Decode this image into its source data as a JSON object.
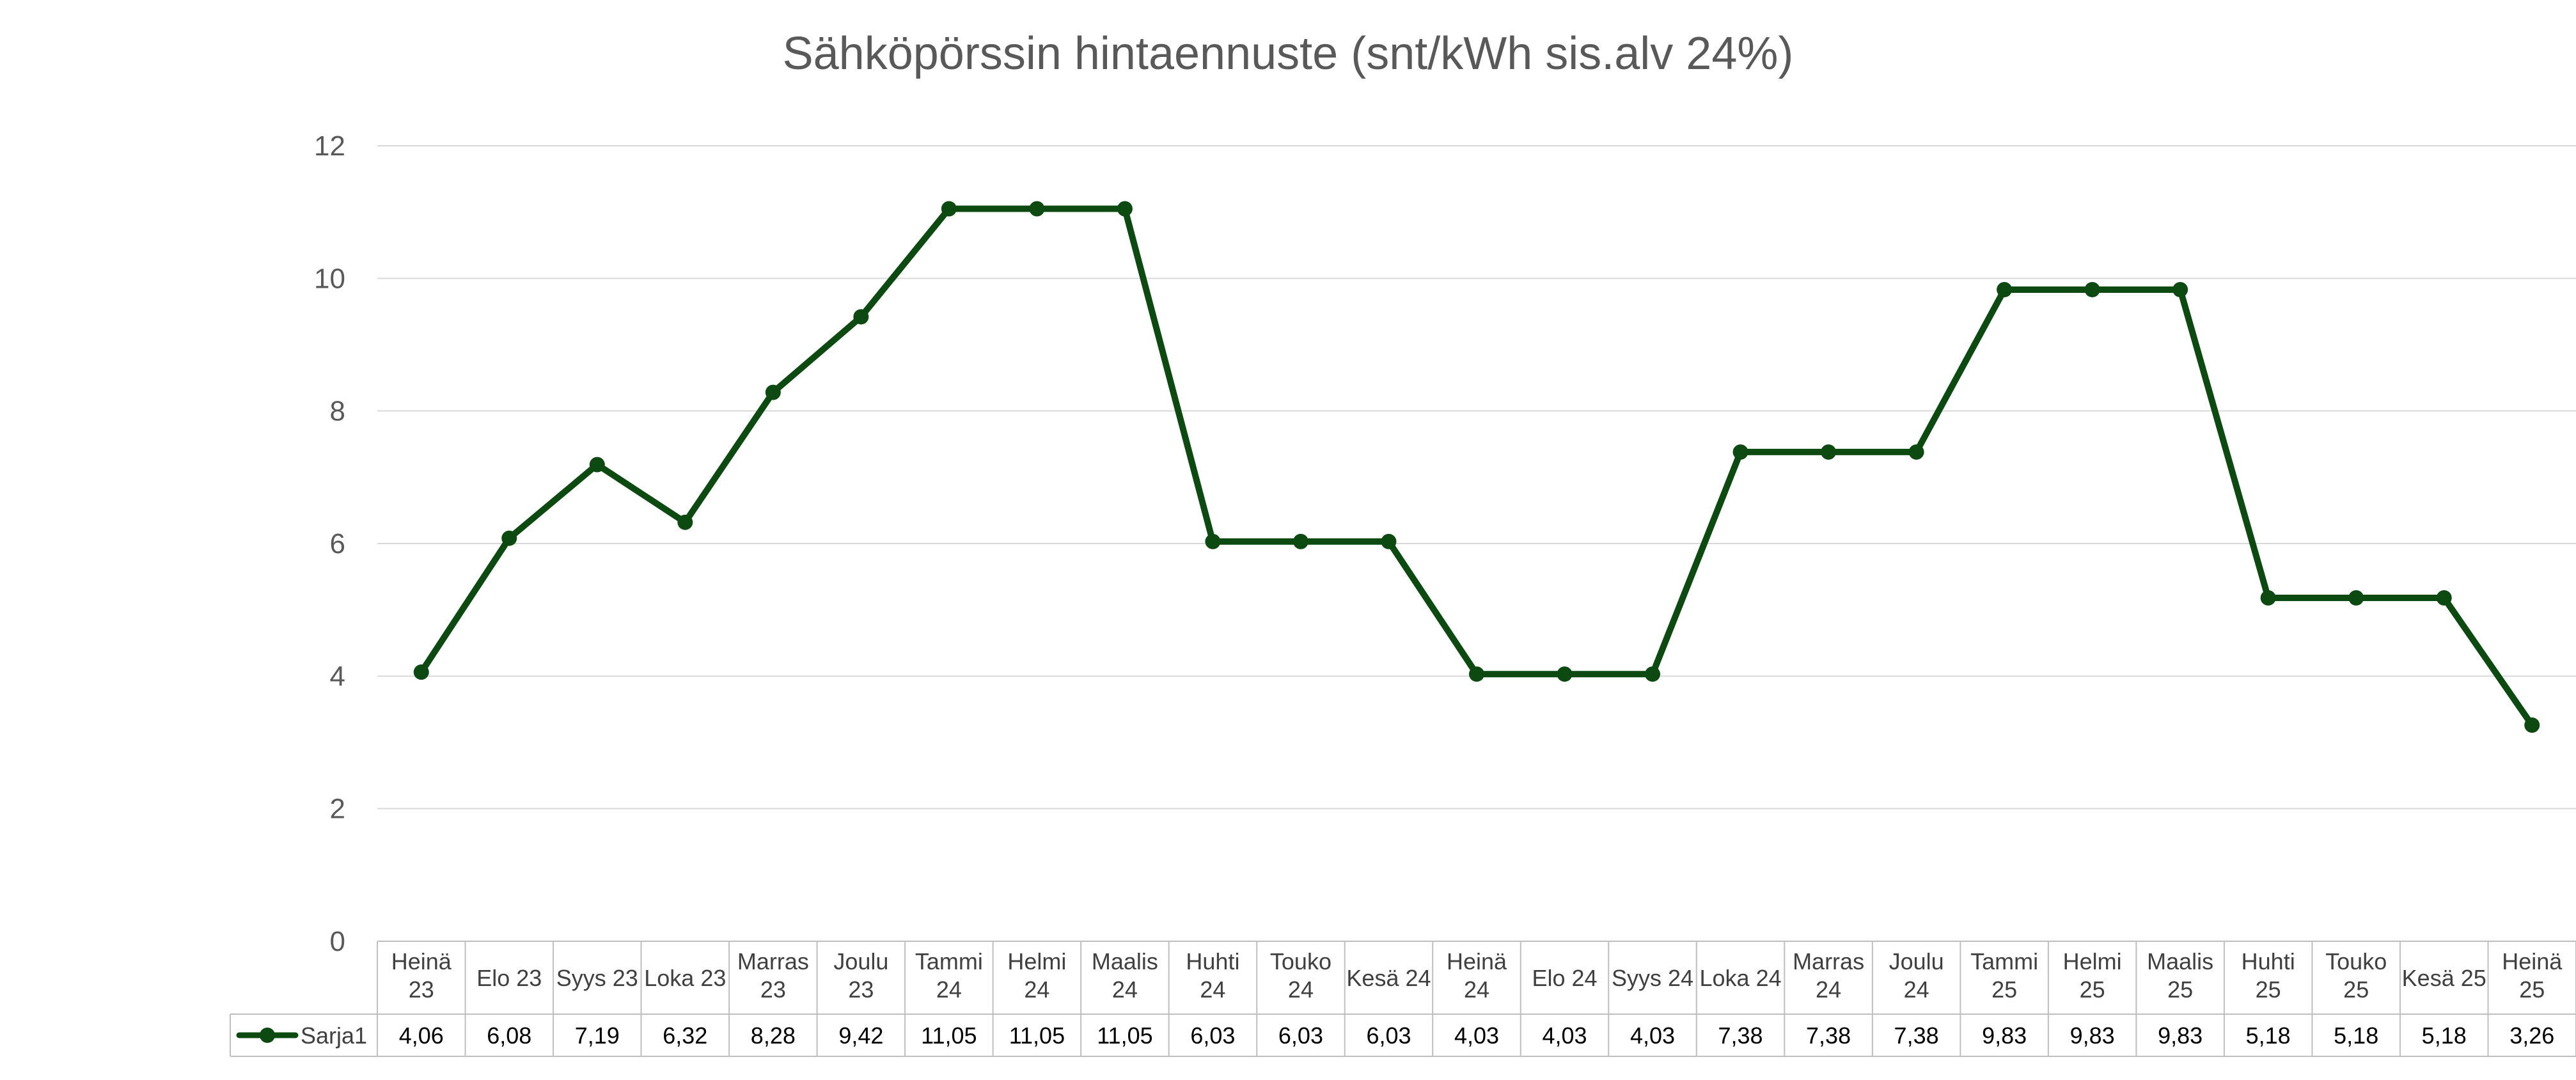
{
  "chart_data": {
    "type": "line",
    "title": "Sähköpörssin hintaennuste (snt/kWh sis.alv 24%)",
    "ylim": [
      0,
      12
    ],
    "yticks": [
      "0",
      "2",
      "4",
      "6",
      "8",
      "10",
      "12"
    ],
    "grid": true,
    "legend": "data-table",
    "series_color": "#0d4a12",
    "categories": [
      [
        "Heinä",
        "23"
      ],
      [
        "Elo 23"
      ],
      [
        "Syys 23"
      ],
      [
        "Loka 23"
      ],
      [
        "Marras",
        "23"
      ],
      [
        "Joulu",
        "23"
      ],
      [
        "Tammi",
        "24"
      ],
      [
        "Helmi",
        "24"
      ],
      [
        "Maalis",
        "24"
      ],
      [
        "Huhti",
        "24"
      ],
      [
        "Touko",
        "24"
      ],
      [
        "Kesä 24"
      ],
      [
        "Heinä",
        "24"
      ],
      [
        "Elo 24"
      ],
      [
        "Syys 24"
      ],
      [
        "Loka 24"
      ],
      [
        "Marras",
        "24"
      ],
      [
        "Joulu",
        "24"
      ],
      [
        "Tammi",
        "25"
      ],
      [
        "Helmi",
        "25"
      ],
      [
        "Maalis",
        "25"
      ],
      [
        "Huhti",
        "25"
      ],
      [
        "Touko",
        "25"
      ],
      [
        "Kesä 25"
      ],
      [
        "Heinä",
        "25"
      ]
    ],
    "series": [
      {
        "name": "Sarja1",
        "values": [
          4.06,
          6.08,
          7.19,
          6.32,
          8.28,
          9.42,
          11.05,
          11.05,
          11.05,
          6.03,
          6.03,
          6.03,
          4.03,
          4.03,
          4.03,
          7.38,
          7.38,
          7.38,
          9.83,
          9.83,
          9.83,
          5.18,
          5.18,
          5.18,
          3.26
        ],
        "value_labels": [
          "4,06",
          "6,08",
          "7,19",
          "6,32",
          "8,28",
          "9,42",
          "11,05",
          "11,05",
          "11,05",
          "6,03",
          "6,03",
          "6,03",
          "4,03",
          "4,03",
          "4,03",
          "7,38",
          "7,38",
          "7,38",
          "9,83",
          "9,83",
          "9,83",
          "5,18",
          "5,18",
          "5,18",
          "3,26"
        ]
      }
    ]
  }
}
